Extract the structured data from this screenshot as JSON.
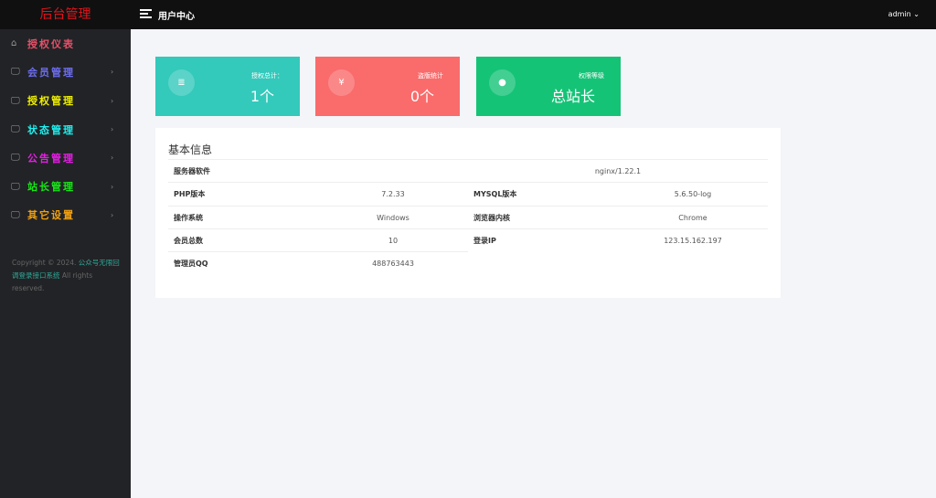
{
  "header": {
    "brand": "后台管理",
    "title": "用户中心",
    "user": "admin"
  },
  "sidebar": {
    "items": [
      {
        "label": "授权仪表",
        "color": "#e8516a",
        "icon": "home-icon",
        "arrow": false
      },
      {
        "label": "会员管理",
        "color": "#6d6ef0",
        "icon": "monitor-icon",
        "arrow": true
      },
      {
        "label": "授权管理",
        "color": "#f0f000",
        "icon": "monitor-icon",
        "arrow": true
      },
      {
        "label": "状态管理",
        "color": "#1ff0f0",
        "icon": "monitor-icon",
        "arrow": true
      },
      {
        "label": "公告管理",
        "color": "#e81ee8",
        "icon": "monitor-icon",
        "arrow": true
      },
      {
        "label": "站长管理",
        "color": "#17e817",
        "icon": "monitor-icon",
        "arrow": true
      },
      {
        "label": "其它设置",
        "color": "#f0a010",
        "icon": "monitor-icon",
        "arrow": true
      }
    ],
    "copyright_pre": "Copyright © 2024.",
    "copyright_link": "公众号无限回调登录接口系统",
    "copyright_post": "All rights reserved."
  },
  "cards": [
    {
      "title": "授权总计：",
      "value": "1个",
      "color": "#33c9bb",
      "icon": "list-icon"
    },
    {
      "title": "盗版统计",
      "value": "0个",
      "color": "#fa6b6b",
      "icon": "yen-icon"
    },
    {
      "title": "权限等级",
      "value": "总站长",
      "color": "#15c377",
      "icon": "user-circle-icon"
    }
  ],
  "info": {
    "title": "基本信息",
    "rows": [
      {
        "k1": "服务器软件",
        "v1": "nginx/1.22.1"
      },
      {
        "k1": "PHP版本",
        "v1": "7.2.33",
        "k2": "MYSQL版本",
        "v2": "5.6.50-log"
      },
      {
        "k1": "操作系统",
        "v1": "Windows",
        "k2": "浏览器内核",
        "v2": "Chrome"
      },
      {
        "k1": "会员总数",
        "v1": "10",
        "k2": "登录IP",
        "v2": "123.15.162.197"
      },
      {
        "k1": "管理员QQ",
        "v1": "488763443"
      }
    ]
  }
}
